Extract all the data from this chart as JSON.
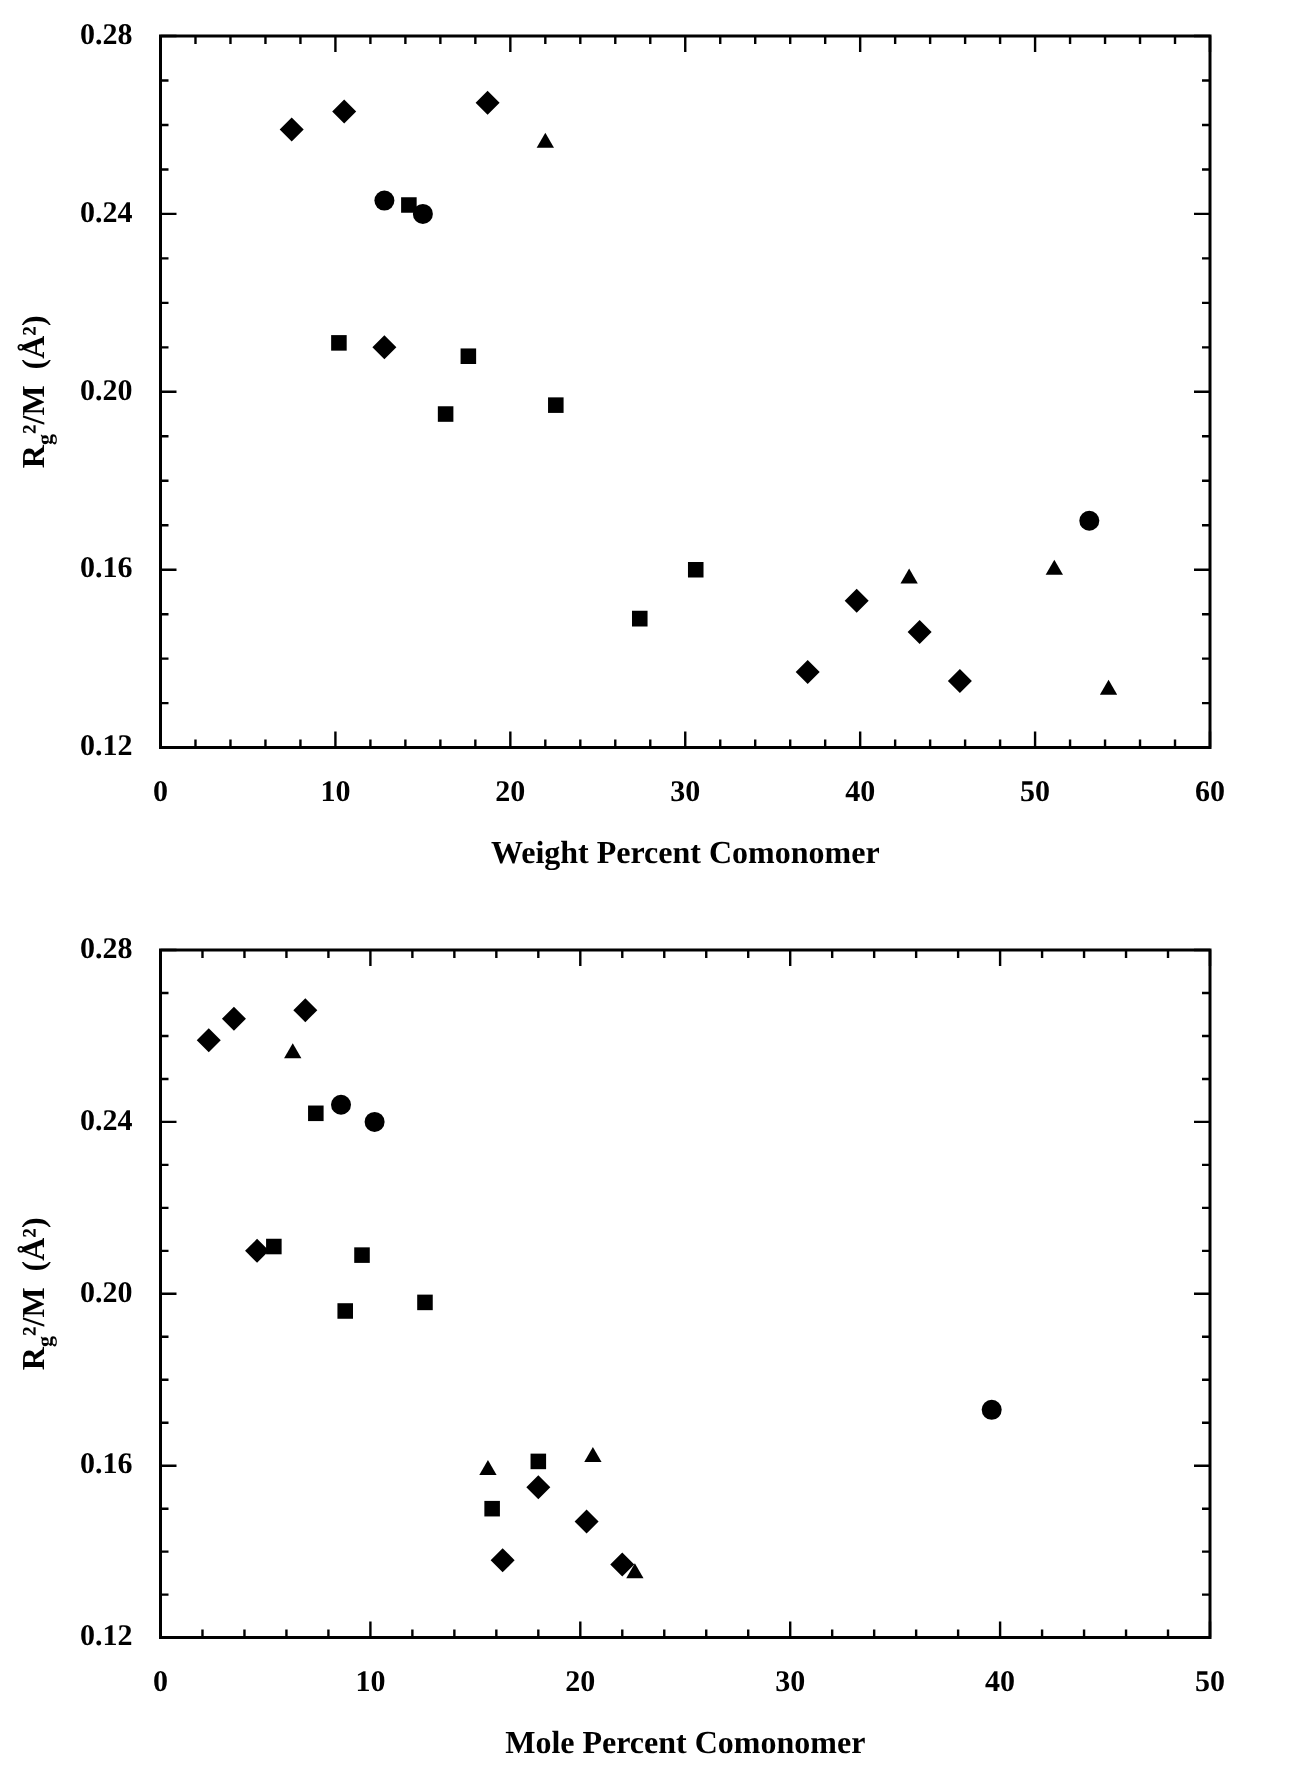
{
  "chart_data": [
    {
      "type": "scatter",
      "xlabel": "Weight Percent Comonomer",
      "ylabel": "R$_{g}$²/M  (Å²)",
      "xlim": [
        0,
        60
      ],
      "ylim": [
        0.12,
        0.28
      ],
      "xticks": [
        0,
        {
          "value": 2,
          "label": null
        },
        {
          "value": 4,
          "label": null
        },
        {
          "value": 6,
          "label": null
        },
        {
          "value": 8,
          "label": null
        },
        10,
        {
          "value": 12,
          "label": null
        },
        {
          "value": 14,
          "label": null
        },
        {
          "value": 16,
          "label": null
        },
        {
          "value": 18,
          "label": null
        },
        20,
        {
          "value": 22,
          "label": null
        },
        {
          "value": 24,
          "label": null
        },
        {
          "value": 26,
          "label": null
        },
        {
          "value": 28,
          "label": null
        },
        30,
        {
          "value": 32,
          "label": null
        },
        {
          "value": 34,
          "label": null
        },
        {
          "value": 36,
          "label": null
        },
        {
          "value": 38,
          "label": null
        },
        40,
        {
          "value": 42,
          "label": null
        },
        {
          "value": 44,
          "label": null
        },
        {
          "value": 46,
          "label": null
        },
        {
          "value": 48,
          "label": null
        },
        50,
        {
          "value": 52,
          "label": null
        },
        {
          "value": 54,
          "label": null
        },
        {
          "value": 56,
          "label": null
        },
        {
          "value": 58,
          "label": null
        },
        60
      ],
      "yticks": [
        0.12,
        {
          "value": 0.13,
          "label": null
        },
        {
          "value": 0.14,
          "label": null
        },
        {
          "value": 0.15,
          "label": null
        },
        0.16,
        {
          "value": 0.17,
          "label": null
        },
        {
          "value": 0.18,
          "label": null
        },
        {
          "value": 0.19,
          "label": null
        },
        {
          "value": 0.2,
          "label": "0.20"
        },
        {
          "value": 0.21,
          "label": null
        },
        {
          "value": 0.22,
          "label": null
        },
        {
          "value": 0.23,
          "label": null
        },
        0.24,
        {
          "value": 0.25,
          "label": null
        },
        {
          "value": 0.26,
          "label": null
        },
        {
          "value": 0.27,
          "label": null
        },
        0.28
      ],
      "series": [
        {
          "color": "#000000",
          "marker": "diamond",
          "x": [
            7.5,
            10.5,
            18.7,
            12.8,
            37,
            39.8,
            43.4,
            45.7
          ],
          "values": [
            0.259,
            0.263,
            0.265,
            0.21,
            0.137,
            0.153,
            0.146,
            0.135
          ]
        },
        {
          "color": "#000000",
          "marker": "circle",
          "x": [
            12.8,
            15,
            53.1
          ],
          "values": [
            0.243,
            0.24,
            0.171
          ]
        },
        {
          "color": "#000000",
          "marker": "square",
          "x": [
            14.2,
            10.2,
            17.6,
            16.3,
            22.6,
            27.4,
            30.6
          ],
          "values": [
            0.242,
            0.211,
            0.208,
            0.195,
            0.197,
            0.149,
            0.16
          ]
        },
        {
          "color": "#000000",
          "marker": "triangle",
          "x": [
            22,
            42.8,
            51.1,
            54.2
          ],
          "values": [
            0.256,
            0.158,
            0.16,
            0.133
          ]
        }
      ]
    },
    {
      "type": "scatter",
      "xlabel": "Mole Percent Comonomer",
      "ylabel": "R$_{g}$²/M  (Å²)",
      "xlim": [
        0,
        50
      ],
      "ylim": [
        0.12,
        0.28
      ],
      "xticks": [
        0,
        {
          "value": 2,
          "label": null
        },
        {
          "value": 4,
          "label": null
        },
        {
          "value": 6,
          "label": null
        },
        {
          "value": 8,
          "label": null
        },
        10,
        {
          "value": 12,
          "label": null
        },
        {
          "value": 14,
          "label": null
        },
        {
          "value": 16,
          "label": null
        },
        {
          "value": 18,
          "label": null
        },
        20,
        {
          "value": 22,
          "label": null
        },
        {
          "value": 24,
          "label": null
        },
        {
          "value": 26,
          "label": null
        },
        {
          "value": 28,
          "label": null
        },
        30,
        {
          "value": 32,
          "label": null
        },
        {
          "value": 34,
          "label": null
        },
        {
          "value": 36,
          "label": null
        },
        {
          "value": 38,
          "label": null
        },
        40,
        {
          "value": 42,
          "label": null
        },
        {
          "value": 44,
          "label": null
        },
        {
          "value": 46,
          "label": null
        },
        {
          "value": 48,
          "label": null
        },
        50
      ],
      "yticks": [
        0.12,
        {
          "value": 0.13,
          "label": null
        },
        {
          "value": 0.14,
          "label": null
        },
        {
          "value": 0.15,
          "label": null
        },
        0.16,
        {
          "value": 0.17,
          "label": null
        },
        {
          "value": 0.18,
          "label": null
        },
        {
          "value": 0.19,
          "label": null
        },
        {
          "value": 0.2,
          "label": "0.20"
        },
        {
          "value": 0.21,
          "label": null
        },
        {
          "value": 0.22,
          "label": null
        },
        {
          "value": 0.23,
          "label": null
        },
        0.24,
        {
          "value": 0.25,
          "label": null
        },
        {
          "value": 0.26,
          "label": null
        },
        {
          "value": 0.27,
          "label": null
        },
        0.28
      ],
      "series": [
        {
          "color": "#000000",
          "marker": "diamond",
          "x": [
            2.3,
            3.5,
            6.9,
            4.6,
            16.3,
            18,
            20.3,
            22
          ],
          "values": [
            0.259,
            0.264,
            0.266,
            0.21,
            0.138,
            0.155,
            0.147,
            0.137
          ]
        },
        {
          "color": "#000000",
          "marker": "circle",
          "x": [
            8.6,
            10.2,
            39.6
          ],
          "values": [
            0.244,
            0.24,
            0.173
          ]
        },
        {
          "color": "#000000",
          "marker": "square",
          "x": [
            7.4,
            5.4,
            9.6,
            8.8,
            12.6,
            15.8,
            18
          ],
          "values": [
            0.242,
            0.211,
            0.209,
            0.196,
            0.198,
            0.15,
            0.161
          ]
        },
        {
          "color": "#000000",
          "marker": "triangle",
          "x": [
            6.3,
            15.6,
            20.6,
            22.6
          ],
          "values": [
            0.256,
            0.159,
            0.162,
            0.135
          ]
        }
      ]
    }
  ]
}
